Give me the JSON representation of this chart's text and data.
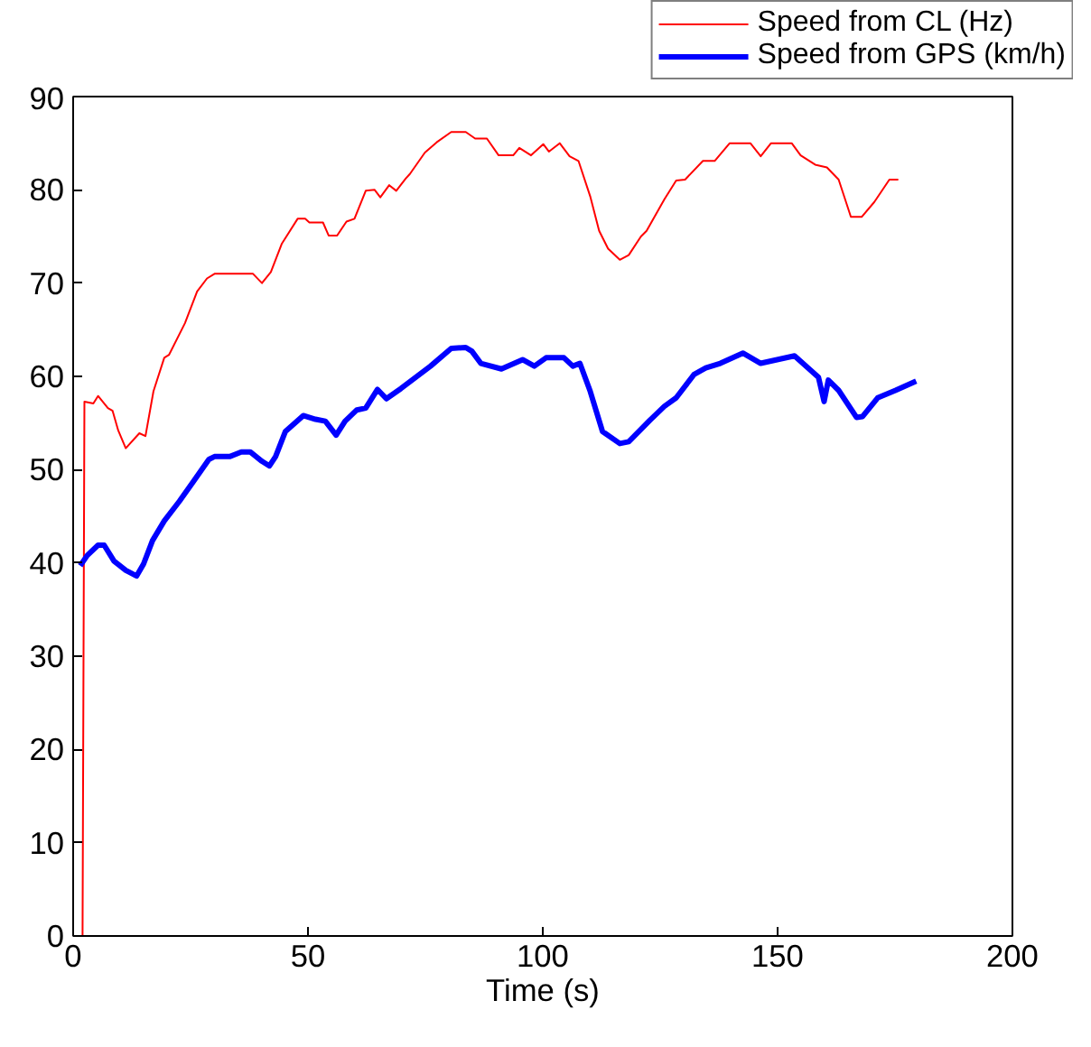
{
  "chart_data": {
    "type": "line",
    "xlabel": "Time (s)",
    "xlim": [
      0,
      200
    ],
    "ylim": [
      0,
      90
    ],
    "xticks": [
      0,
      50,
      100,
      150,
      200
    ],
    "yticks": [
      0,
      10,
      20,
      30,
      40,
      50,
      60,
      70,
      80,
      90
    ],
    "grid": false,
    "legend": "top right",
    "marker": "none",
    "line_style": "solid",
    "series": [
      {
        "name": "Speed from CL (Hz)",
        "color": "#ff0000",
        "x": [
          2,
          2.4,
          4.3,
          5.3,
          7.4,
          8.4,
          9.6,
          11.2,
          14.1,
          15.4,
          17.1,
          19.4,
          20.4,
          23.8,
          26.4,
          28.5,
          30.1,
          38.3,
          40.2,
          42.1,
          44.4,
          47.8,
          49.4,
          50.3,
          53.2,
          54.4,
          56.2,
          58.2,
          59.9,
          62.3,
          64.2,
          65.4,
          67.3,
          68.8,
          70.8,
          71.7,
          74.9,
          77.4,
          80.5,
          83.6,
          85.6,
          88.1,
          90.6,
          93.7,
          95,
          97.5,
          100.1,
          101.3,
          103.6,
          105.7,
          107.6,
          110.1,
          112,
          113.9,
          116.4,
          118.3,
          120.9,
          122.1,
          125.9,
          128.4,
          130.3,
          134.1,
          136.6,
          139.8,
          144.2,
          146.4,
          148.6,
          153,
          154.9,
          158,
          160.5,
          163,
          165.6,
          167.9,
          170.6,
          173.8,
          175.7
        ],
        "values": [
          0,
          57.3,
          57.1,
          57.9,
          56.6,
          56.3,
          54.2,
          52.3,
          53.9,
          53.6,
          58.4,
          62,
          62.3,
          65.7,
          69.1,
          70.5,
          71,
          71,
          70,
          71.2,
          74.2,
          76.9,
          76.9,
          76.5,
          76.5,
          75.1,
          75.1,
          76.6,
          76.9,
          79.9,
          80,
          79.2,
          80.5,
          79.9,
          81.2,
          81.7,
          84,
          85.1,
          86.2,
          86.2,
          85.5,
          85.5,
          83.7,
          83.7,
          84.5,
          83.7,
          84.9,
          84.1,
          85,
          83.6,
          83.1,
          79.3,
          75.6,
          73.7,
          72.5,
          73,
          75,
          75.6,
          79,
          81,
          81.1,
          83.1,
          83.1,
          85,
          85,
          83.6,
          85,
          85,
          83.7,
          82.7,
          82.4,
          81.1,
          77.1,
          77.1,
          78.7,
          81.1,
          81.1
        ]
      },
      {
        "name": "Speed from GPS (km/h)",
        "color": "#0000ff",
        "x": [
          1.5,
          3,
          5.3,
          6.6,
          8.7,
          11.2,
          13.5,
          15,
          16.9,
          19.4,
          22.6,
          25.7,
          28.9,
          30.1,
          33.3,
          35.8,
          37.7,
          40.2,
          41.8,
          43.1,
          45.2,
          49,
          51.6,
          53.7,
          56,
          57.9,
          60.4,
          62.3,
          64.8,
          66.7,
          69.8,
          76.1,
          80.5,
          83.6,
          84.9,
          86.8,
          91.2,
          95.7,
          98.2,
          100.7,
          104.5,
          106.4,
          107.9,
          110.1,
          112.7,
          116.4,
          118.3,
          122.8,
          125.9,
          128.4,
          132.2,
          134.7,
          137.8,
          142.6,
          146.4,
          153.6,
          158.7,
          159.9,
          160.8,
          163,
          166.8,
          168.1,
          171.3,
          175.1,
          179.5
        ],
        "values": [
          39.7,
          40.8,
          41.9,
          41.9,
          40.2,
          39.2,
          38.6,
          39.9,
          42.4,
          44.5,
          46.6,
          48.8,
          51.1,
          51.4,
          51.4,
          51.9,
          51.9,
          50.9,
          50.4,
          51.4,
          54.1,
          55.8,
          55.4,
          55.2,
          53.7,
          55.2,
          56.4,
          56.6,
          58.6,
          57.6,
          58.7,
          61.1,
          63,
          63.1,
          62.7,
          61.4,
          60.8,
          61.8,
          61.1,
          62,
          62,
          61.1,
          61.4,
          58.4,
          54.1,
          52.8,
          53,
          55.3,
          56.8,
          57.7,
          60.2,
          60.9,
          61.4,
          62.5,
          61.4,
          62.2,
          59.9,
          57.3,
          59.6,
          58.5,
          55.6,
          55.7,
          57.7,
          58.5,
          59.5
        ]
      }
    ]
  }
}
